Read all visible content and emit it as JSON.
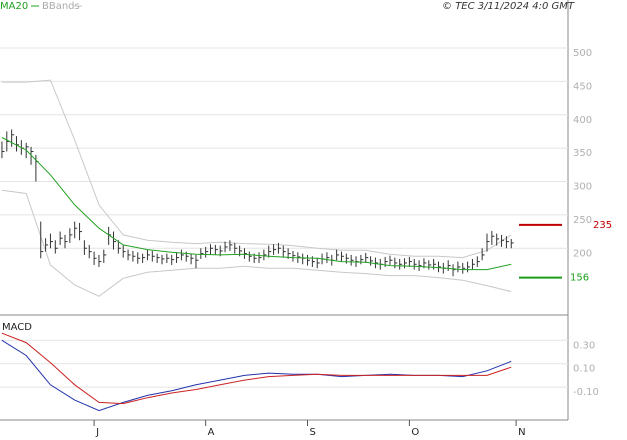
{
  "header": "© TEC 3/11/2024 4:0 GMT",
  "chart_data": [
    {
      "type": "hlc",
      "color": "#333333",
      "x": [
        0,
        1,
        2,
        3,
        4,
        5,
        6,
        7,
        8,
        9,
        10,
        11,
        12,
        13,
        14,
        15,
        16,
        17,
        18,
        19,
        20,
        21,
        22,
        23,
        24,
        25,
        26,
        27,
        28,
        29,
        30,
        31,
        32,
        33,
        34,
        35,
        36,
        37,
        38,
        39,
        40,
        41,
        42,
        43,
        44,
        45,
        46,
        47,
        48,
        49,
        50,
        51,
        52,
        53,
        54,
        55,
        56,
        57,
        58,
        59,
        60,
        61,
        62,
        63,
        64,
        65,
        66,
        67,
        68,
        69,
        70,
        71,
        72,
        73,
        74,
        75,
        76,
        77,
        78,
        79,
        80,
        81,
        82,
        83,
        84,
        85,
        86,
        87,
        88,
        89,
        90,
        91,
        92,
        93,
        94,
        95,
        96,
        97,
        98,
        99,
        100,
        101,
        102,
        103,
        104,
        105
      ],
      "high": [
        360,
        375,
        378,
        368,
        362,
        358,
        352,
        340,
        240,
        215,
        222,
        212,
        225,
        220,
        230,
        240,
        238,
        212,
        205,
        195,
        190,
        198,
        232,
        225,
        212,
        205,
        198,
        196,
        194,
        192,
        198,
        196,
        192,
        190,
        192,
        190,
        194,
        198,
        195,
        192,
        190,
        200,
        202,
        206,
        205,
        204,
        210,
        212,
        208,
        204,
        200,
        195,
        192,
        194,
        198,
        204,
        206,
        208,
        204,
        200,
        196,
        194,
        192,
        190,
        188,
        186,
        192,
        194,
        190,
        198,
        195,
        192,
        190,
        188,
        190,
        193,
        188,
        186,
        184,
        187,
        189,
        186,
        184,
        185,
        187,
        184,
        182,
        185,
        182,
        184,
        180,
        178,
        182,
        176,
        180,
        178,
        180,
        184,
        188,
        200,
        222,
        226,
        222,
        220,
        218,
        214
      ],
      "low": [
        335,
        345,
        352,
        345,
        340,
        335,
        325,
        300,
        185,
        195,
        200,
        192,
        205,
        200,
        208,
        215,
        212,
        190,
        185,
        175,
        172,
        178,
        205,
        198,
        192,
        186,
        182,
        180,
        177,
        178,
        182,
        180,
        178,
        176,
        178,
        175,
        178,
        182,
        180,
        176,
        170,
        184,
        186,
        190,
        190,
        188,
        194,
        196,
        192,
        188,
        184,
        180,
        178,
        178,
        182,
        186,
        190,
        192,
        186,
        184,
        180,
        178,
        176,
        174,
        172,
        170,
        176,
        178,
        174,
        182,
        180,
        177,
        174,
        172,
        176,
        178,
        174,
        170,
        168,
        172,
        175,
        170,
        168,
        170,
        172,
        168,
        166,
        170,
        168,
        168,
        164,
        162,
        166,
        158,
        164,
        162,
        164,
        168,
        172,
        182,
        195,
        205,
        204,
        202,
        200,
        200
      ],
      "close": [
        345,
        360,
        370,
        355,
        350,
        352,
        345,
        330,
        195,
        205,
        210,
        200,
        215,
        210,
        220,
        230,
        225,
        200,
        195,
        185,
        180,
        190,
        220,
        210,
        200,
        195,
        190,
        188,
        185,
        186,
        190,
        188,
        186,
        184,
        185,
        183,
        186,
        190,
        188,
        185,
        182,
        192,
        195,
        200,
        198,
        196,
        202,
        205,
        200,
        196,
        192,
        188,
        185,
        186,
        190,
        195,
        198,
        200,
        195,
        192,
        189,
        187,
        185,
        182,
        180,
        178,
        184,
        186,
        182,
        190,
        188,
        185,
        182,
        180,
        183,
        186,
        181,
        178,
        176,
        180,
        182,
        178,
        176,
        178,
        180,
        176,
        174,
        178,
        175,
        176,
        172,
        170,
        174,
        168,
        172,
        170,
        172,
        176,
        180,
        190,
        210,
        218,
        214,
        212,
        210,
        208
      ],
      "overlays": [
        {
          "name": "MA20",
          "color": "#22a022",
          "x": [
            0,
            5,
            10,
            15,
            20,
            25,
            30,
            35,
            40,
            45,
            50,
            55,
            60,
            65,
            70,
            75,
            80,
            85,
            90,
            95,
            100,
            105
          ],
          "values": [
            366,
            347,
            310,
            265,
            230,
            205,
            198,
            194,
            191,
            190,
            191,
            188,
            186,
            185,
            180,
            179,
            174,
            173,
            171,
            168,
            168,
            176
          ]
        },
        {
          "name": "BBands",
          "color": "#c8c8c8",
          "x": [
            0,
            5,
            10,
            15,
            20,
            25,
            30,
            35,
            40,
            45,
            50,
            55,
            60,
            65,
            70,
            75,
            80,
            85,
            90,
            95,
            100,
            105
          ],
          "upper": [
            449,
            449,
            452,
            362,
            265,
            220,
            212,
            209,
            207,
            209,
            207,
            206,
            204,
            200,
            197,
            197,
            191,
            188,
            188,
            186,
            197,
            220
          ],
          "lower": [
            287,
            282,
            175,
            145,
            128,
            155,
            164,
            167,
            170,
            170,
            173,
            170,
            170,
            167,
            164,
            162,
            159,
            159,
            156,
            152,
            144,
            135
          ]
        }
      ],
      "levels": [
        {
          "value": 235,
          "color": "#c00000"
        },
        {
          "value": 156,
          "color": "#1a9e1a"
        }
      ],
      "xlim": [
        -0.4,
        116.7
      ],
      "ylim": [
        100,
        545
      ],
      "yticks": [
        200,
        250,
        300,
        350,
        400,
        450,
        500
      ],
      "grid": true
    },
    {
      "type": "line",
      "title": "MACD",
      "x": [
        0,
        5,
        10,
        15,
        20,
        25,
        30,
        35,
        40,
        45,
        50,
        55,
        60,
        65,
        70,
        75,
        80,
        85,
        90,
        95,
        100,
        105
      ],
      "series": [
        {
          "color": "#2233aa",
          "values": [
            0.3,
            0.17,
            -0.08,
            -0.21,
            -0.3,
            -0.23,
            -0.17,
            -0.13,
            -0.08,
            -0.04,
            0,
            0.02,
            0.01,
            0.01,
            -0.01,
            0,
            0.01,
            0,
            0,
            -0.01,
            0.04,
            0.12
          ]
        },
        {
          "color": "#cc2222",
          "values": [
            0.36,
            0.28,
            0.11,
            -0.08,
            -0.23,
            -0.24,
            -0.19,
            -0.15,
            -0.12,
            -0.08,
            -0.04,
            -0.01,
            0,
            0.01,
            0,
            0,
            0,
            0,
            0,
            0,
            0,
            0.07
          ]
        }
      ],
      "xlim": [
        -0.4,
        116.7
      ],
      "ylim": [
        -0.38,
        0.49
      ],
      "yticks": [
        {
          "value": 0.3,
          "label": "0.30"
        },
        {
          "value": 0.1,
          "label": "0.10"
        },
        {
          "value": -0.1,
          "label": "-0.10"
        }
      ],
      "xticks": [
        {
          "value": 19,
          "label": "J"
        },
        {
          "value": 42,
          "label": "A"
        },
        {
          "value": 63,
          "label": "S"
        },
        {
          "value": 84,
          "label": "O"
        },
        {
          "value": 106,
          "label": "N"
        }
      ],
      "grid": true
    }
  ]
}
